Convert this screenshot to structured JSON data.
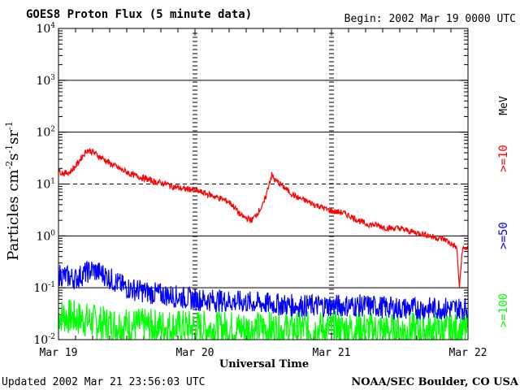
{
  "header": {
    "title": "GOES8 Proton Flux (5 minute data)",
    "begin": "Begin: 2002 Mar 19 0000 UTC"
  },
  "footer": {
    "updated": "Updated 2002 Mar 21 23:56:03 UTC",
    "credit": "NOAA/SEC Boulder, CO USA"
  },
  "chart_data": {
    "type": "line",
    "title": "GOES8 Proton Flux (5 minute data)",
    "xlabel": "Universal Time",
    "ylabel": "Particles cm-2s-1sr-1",
    "yscale": "log",
    "ylim": [
      0.01,
      10000
    ],
    "xlim": [
      0,
      72
    ],
    "x_unit": "hours since 2002 Mar 19 0000 UTC",
    "x_ticks": [
      {
        "value": 0,
        "label": "Mar 19"
      },
      {
        "value": 24,
        "label": "Mar 20"
      },
      {
        "value": 48,
        "label": "Mar 21"
      },
      {
        "value": 72,
        "label": "Mar 22"
      }
    ],
    "y_ticks": [
      {
        "value": 0.01,
        "base": "10",
        "exp": "-2"
      },
      {
        "value": 0.1,
        "base": "10",
        "exp": "-1"
      },
      {
        "value": 1,
        "base": "10",
        "exp": "0"
      },
      {
        "value": 10,
        "base": "10",
        "exp": "1"
      },
      {
        "value": 100,
        "base": "10",
        "exp": "2"
      },
      {
        "value": 1000,
        "base": "10",
        "exp": "3"
      },
      {
        "value": 10000,
        "base": "10",
        "exp": "4"
      }
    ],
    "gridlines_solid": [
      1,
      100,
      1000
    ],
    "gridlines_dashed": [
      10
    ],
    "gridlines_colored": [
      0.1
    ],
    "legend_unit": "MeV",
    "series": [
      {
        "name": ">=10",
        "color": "#ff0000",
        "points": [
          [
            0,
            18
          ],
          [
            1,
            16
          ],
          [
            2,
            17
          ],
          [
            3,
            22
          ],
          [
            4,
            32
          ],
          [
            5,
            45
          ],
          [
            6,
            42
          ],
          [
            7,
            35
          ],
          [
            8,
            30
          ],
          [
            9,
            25
          ],
          [
            10,
            22
          ],
          [
            11,
            19
          ],
          [
            12,
            17
          ],
          [
            13,
            15
          ],
          [
            14,
            14
          ],
          [
            15,
            13
          ],
          [
            16,
            12
          ],
          [
            17,
            11
          ],
          [
            18,
            10.5
          ],
          [
            19,
            10
          ],
          [
            20,
            9
          ],
          [
            21,
            8.5
          ],
          [
            22,
            8
          ],
          [
            23,
            8
          ],
          [
            24,
            7.5
          ],
          [
            25,
            7
          ],
          [
            26,
            6.5
          ],
          [
            27,
            6
          ],
          [
            28,
            5.5
          ],
          [
            29,
            5
          ],
          [
            30,
            4.5
          ],
          [
            31,
            3.5
          ],
          [
            32,
            2.5
          ],
          [
            33,
            2.2
          ],
          [
            34,
            2
          ],
          [
            35,
            2.8
          ],
          [
            36,
            4
          ],
          [
            36.5,
            6
          ],
          [
            37,
            10
          ],
          [
            37.5,
            15
          ],
          [
            38,
            12
          ],
          [
            39,
            10
          ],
          [
            40,
            8
          ],
          [
            41,
            6.5
          ],
          [
            42,
            5.5
          ],
          [
            43,
            5
          ],
          [
            44,
            4.5
          ],
          [
            45,
            4
          ],
          [
            46,
            3.7
          ],
          [
            47,
            3.3
          ],
          [
            48,
            3
          ],
          [
            50,
            2.8
          ],
          [
            52,
            2.2
          ],
          [
            54,
            1.7
          ],
          [
            56,
            1.6
          ],
          [
            58,
            1.4
          ],
          [
            60,
            1.4
          ],
          [
            62,
            1.2
          ],
          [
            64,
            1.1
          ],
          [
            66,
            0.95
          ],
          [
            68,
            0.85
          ],
          [
            69,
            0.7
          ],
          [
            70,
            0.6
          ],
          [
            70.5,
            0.1
          ],
          [
            71,
            0.55
          ],
          [
            72,
            0.6
          ]
        ]
      },
      {
        "name": ">=50",
        "color": "#0000ff",
        "points": [
          [
            0,
            0.18
          ],
          [
            3,
            0.15
          ],
          [
            5,
            0.2
          ],
          [
            6,
            0.22
          ],
          [
            8,
            0.18
          ],
          [
            10,
            0.13
          ],
          [
            12,
            0.1
          ],
          [
            16,
            0.08
          ],
          [
            20,
            0.07
          ],
          [
            24,
            0.06
          ],
          [
            30,
            0.055
          ],
          [
            36,
            0.05
          ],
          [
            42,
            0.045
          ],
          [
            48,
            0.045
          ],
          [
            54,
            0.045
          ],
          [
            60,
            0.04
          ],
          [
            66,
            0.04
          ],
          [
            72,
            0.04
          ]
        ]
      },
      {
        "name": ">=100",
        "color": "#00ff00",
        "points": [
          [
            0,
            0.03
          ],
          [
            4,
            0.025
          ],
          [
            8,
            0.02
          ],
          [
            16,
            0.018
          ],
          [
            24,
            0.017
          ],
          [
            36,
            0.016
          ],
          [
            48,
            0.016
          ],
          [
            60,
            0.015
          ],
          [
            72,
            0.015
          ]
        ]
      }
    ]
  }
}
